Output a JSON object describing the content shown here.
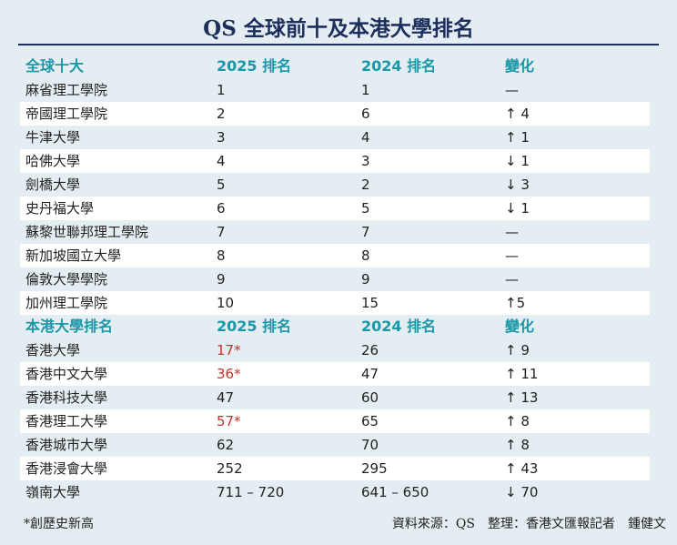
{
  "title": "QS 全球前十及本港大學排名",
  "highlight_color": "#c8302c",
  "sections": [
    {
      "header": [
        "全球十大",
        "2025 排名",
        "2024 排名",
        "變化"
      ],
      "rows": [
        [
          "麻省理工學院",
          "1",
          "1",
          "—"
        ],
        [
          "帝國理工學院",
          "2",
          "6",
          "↑ 4"
        ],
        [
          "牛津大學",
          "3",
          "4",
          "↑ 1"
        ],
        [
          "哈佛大學",
          "4",
          "3",
          "↓ 1"
        ],
        [
          "劍橋大學",
          "5",
          "2",
          "↓ 3"
        ],
        [
          "史丹福大學",
          "6",
          "5",
          "↓ 1"
        ],
        [
          "蘇黎世聯邦理工學院",
          "7",
          "7",
          "—"
        ],
        [
          "新加坡國立大學",
          "8",
          "8",
          "—"
        ],
        [
          "倫敦大學學院",
          "9",
          "9",
          "—"
        ],
        [
          "加州理工學院",
          "10",
          "15",
          "↑5"
        ]
      ]
    },
    {
      "header": [
        "本港大學排名",
        "2025 排名",
        "2024 排名",
        "變化"
      ],
      "rows": [
        [
          "香港大學",
          "17*",
          "26",
          "↑ 9"
        ],
        [
          "香港中文大學",
          "36*",
          "47",
          "↑ 11"
        ],
        [
          "香港科技大學",
          "47",
          "60",
          "↑ 13"
        ],
        [
          "香港理工大學",
          "57*",
          "65",
          "↑ 8"
        ],
        [
          "香港城市大學",
          "62",
          "70",
          "↑ 8"
        ],
        [
          "香港浸會大學",
          "252",
          "295",
          "↑ 43"
        ],
        [
          "嶺南大學",
          "711 – 720",
          "641 – 650",
          "↓ 70"
        ]
      ]
    }
  ],
  "footer": {
    "note": "*創歷史新高",
    "source": "資料來源：QS　整理：香港文匯報記者　鍾健文"
  }
}
